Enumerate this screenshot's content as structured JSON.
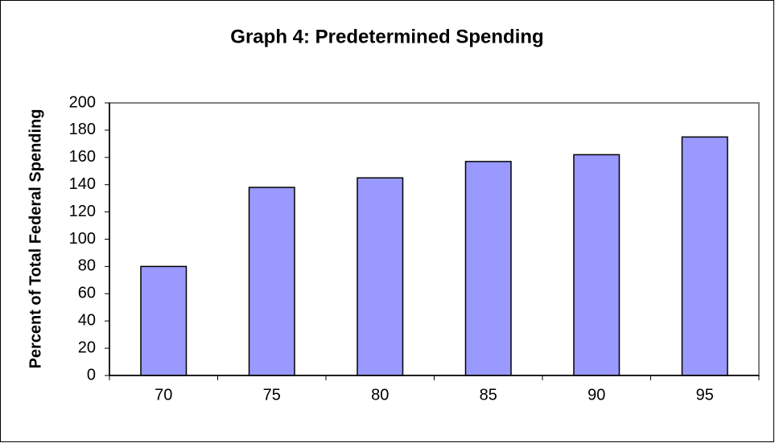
{
  "chart_data": {
    "type": "bar",
    "title": "Graph 4: Predetermined Spending",
    "y_label": "Percent of Total Federal Spending",
    "categories": [
      "70",
      "75",
      "80",
      "85",
      "90",
      "95"
    ],
    "values": [
      80,
      138,
      145,
      157,
      162,
      175
    ],
    "color": "#9999ff",
    "ylim": [
      0,
      200
    ],
    "yticks": [
      0,
      20,
      40,
      60,
      80,
      100,
      120,
      140,
      160,
      180,
      200
    ],
    "grid": false
  }
}
